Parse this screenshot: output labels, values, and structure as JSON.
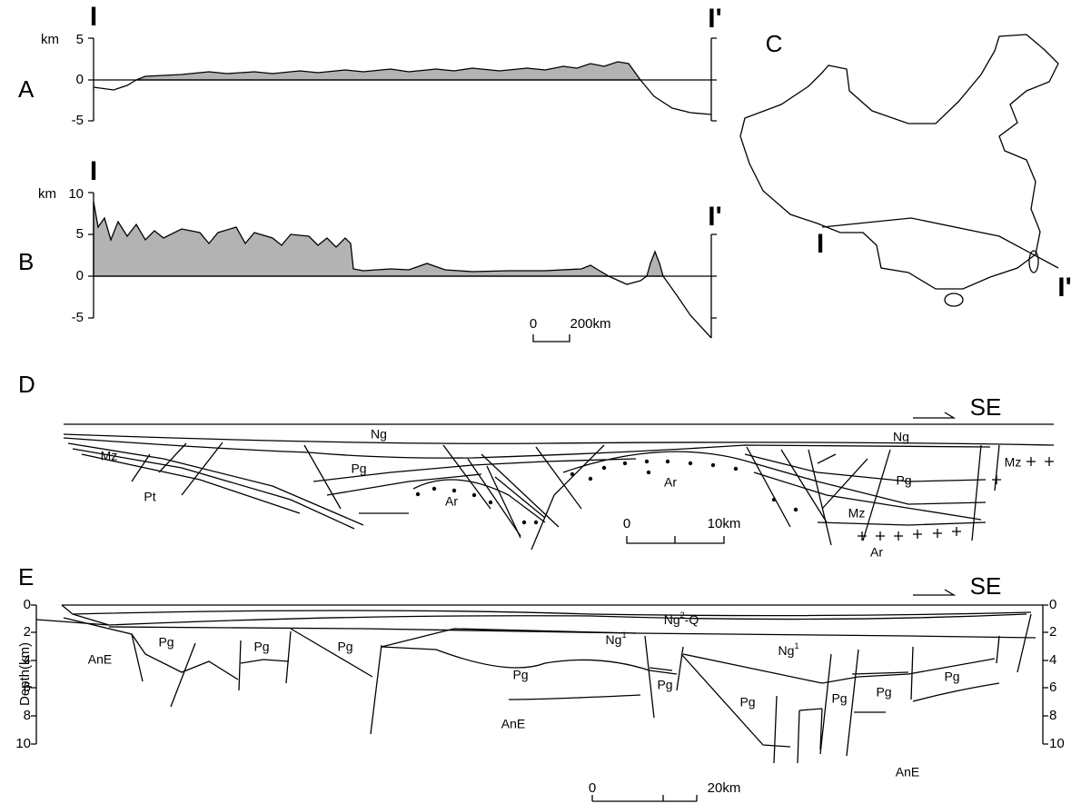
{
  "panel_A": {
    "label": "A",
    "start": "I",
    "end": "I'",
    "unit": "km",
    "ticks": [
      "5",
      "0",
      "-5"
    ]
  },
  "panel_B": {
    "label": "B",
    "start": "I",
    "end": "I'",
    "unit": "km",
    "ticks": [
      "10",
      "5",
      "0",
      "-5"
    ],
    "scale": [
      "0",
      "200km"
    ]
  },
  "panel_C": {
    "label": "C",
    "start": "I",
    "end": "I'"
  },
  "panel_D": {
    "label": "D",
    "direction": "SE",
    "units": [
      "Ng",
      "Ng",
      "Mz",
      "Pg",
      "Pt",
      "Ar",
      "Ar",
      "Pg",
      "Mz",
      "Mz",
      "Ar"
    ],
    "scale": [
      "0",
      "10km"
    ]
  },
  "panel_E": {
    "label": "E",
    "direction": "SE",
    "axis_label": "Depth(km)",
    "ticks": [
      "0",
      "2",
      "4",
      "6",
      "8",
      "10"
    ],
    "right_ticks": [
      "0",
      "2",
      "4",
      "6",
      "8",
      "10"
    ],
    "units": [
      {
        "base": "Ng",
        "sup": "2",
        "rest": "-Q"
      },
      {
        "base": "Ng",
        "sup": "1"
      },
      {
        "base": "Ng",
        "sup": "1"
      },
      "Pg",
      "Pg",
      "Pg",
      "Pg",
      "Pg",
      "Pg",
      "Pg",
      "Pg",
      "Pg",
      "AnE",
      "AnE",
      "AnE"
    ],
    "scale": [
      "0",
      "20km"
    ]
  }
}
